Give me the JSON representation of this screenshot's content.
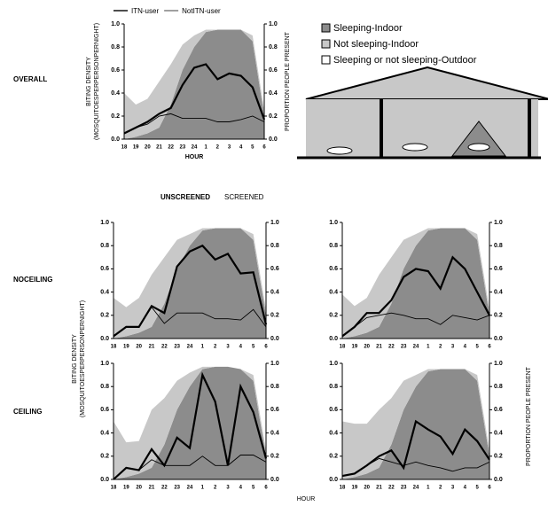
{
  "figure": {
    "row_labels": [
      "OVERALL",
      "NOCEILING",
      "CEILING"
    ],
    "column_labels": [
      "UNSCREENED",
      "SCREENED"
    ],
    "y_label": [
      "BITING DENSITY",
      "(MOSQUITOESPERPERSONPERNIGHT)"
    ],
    "y2_label": "PROPORTION PEOPLE PRESENT",
    "x_label": "HOUR",
    "outdoor_legend": {
      "name": "Sleeping or not sleeping-Outdoor",
      "color": "#ffffff"
    }
  },
  "chart_data": [
    {
      "type": "combo",
      "x_label": "HOUR",
      "y_label": [
        "BITING DENSITY",
        "(MOSQUITOESPERPERSONPERNIGHT)"
      ],
      "y2_label": "PROPORTION PEOPLE PRESENT",
      "categories": [
        "18",
        "19",
        "20",
        "21",
        "22",
        "23",
        "24",
        "1",
        "2",
        "3",
        "4",
        "5",
        "6"
      ],
      "series": [
        {
          "name": "Sleeping-Indoor",
          "kind": "area",
          "axis": "y2",
          "color": "#8c8c8c",
          "values": [
            0,
            0.02,
            0.05,
            0.1,
            0.3,
            0.6,
            0.8,
            0.93,
            0.95,
            0.95,
            0.95,
            0.85,
            0.2
          ]
        },
        {
          "name": "Not sleeping-Indoor",
          "kind": "area",
          "axis": "y2",
          "color": "#c8c8c8",
          "values": [
            0.4,
            0.28,
            0.3,
            0.4,
            0.35,
            0.22,
            0.1,
            0.02,
            0,
            0,
            0,
            0.05,
            0.05
          ]
        },
        {
          "name": "ITN-user",
          "kind": "line",
          "color": "#000000",
          "values": [
            0.05,
            0.1,
            0.15,
            0.22,
            0.27,
            0.47,
            0.62,
            0.65,
            0.52,
            0.57,
            0.55,
            0.45,
            0.17
          ]
        },
        {
          "name": "NotITN-user",
          "kind": "line",
          "color": "#000000",
          "values": [
            0.05,
            0.1,
            0.13,
            0.2,
            0.22,
            0.18,
            0.18,
            0.18,
            0.15,
            0.15,
            0.17,
            0.2,
            0.15
          ]
        }
      ],
      "ylim": [
        0,
        1
      ],
      "yticks": [
        {
          "value": 0,
          "label": "0.0"
        },
        {
          "value": 0.2,
          "label": "0.2"
        },
        {
          "value": 0.4,
          "label": "0.4"
        },
        {
          "value": 0.6,
          "label": "0.6"
        },
        {
          "value": 0.8,
          "label": "0.8"
        },
        {
          "value": 1,
          "label": "1.0"
        }
      ],
      "y2lim": [
        0,
        1
      ],
      "y2ticks": [
        {
          "value": 0,
          "label": "0.0"
        },
        {
          "value": 0.2,
          "label": "0.2"
        },
        {
          "value": 0.4,
          "label": "0.4"
        },
        {
          "value": 0.6,
          "label": "0.6"
        },
        {
          "value": 0.8,
          "label": "0.8"
        },
        {
          "value": 1,
          "label": "1.0"
        }
      ]
    },
    {
      "type": "combo",
      "categories": [
        "18",
        "19",
        "20",
        "21",
        "22",
        "23",
        "24",
        "1",
        "2",
        "3",
        "4",
        "5",
        "6"
      ],
      "series": [
        {
          "name": "Sleeping-Indoor",
          "kind": "area",
          "axis": "y2",
          "color": "#8c8c8c",
          "values": [
            0,
            0.02,
            0.05,
            0.1,
            0.3,
            0.6,
            0.8,
            0.93,
            0.95,
            0.95,
            0.95,
            0.85,
            0.2
          ]
        },
        {
          "name": "Not sleeping-Indoor",
          "kind": "area",
          "axis": "y2",
          "color": "#c8c8c8",
          "values": [
            0.35,
            0.25,
            0.3,
            0.45,
            0.4,
            0.25,
            0.1,
            0.02,
            0,
            0,
            0,
            0.05,
            0.05
          ]
        },
        {
          "name": "ITN-user",
          "kind": "line",
          "color": "#000000",
          "values": [
            0.02,
            0.1,
            0.1,
            0.28,
            0.22,
            0.62,
            0.75,
            0.8,
            0.68,
            0.73,
            0.56,
            0.57,
            0.12
          ]
        },
        {
          "name": "NotITN-user",
          "kind": "line",
          "color": "#000000",
          "values": [
            0.02,
            0.1,
            0.1,
            0.27,
            0.13,
            0.22,
            0.22,
            0.22,
            0.17,
            0.17,
            0.16,
            0.25,
            0.1
          ]
        }
      ],
      "ylim": [
        0,
        1
      ],
      "yticks": [
        {
          "value": 0,
          "label": "0.0"
        },
        {
          "value": 0.2,
          "label": "0.2"
        },
        {
          "value": 0.4,
          "label": "0.4"
        },
        {
          "value": 0.6,
          "label": "0.6"
        },
        {
          "value": 0.8,
          "label": "0.8"
        },
        {
          "value": 1,
          "label": "1.0"
        }
      ],
      "y2lim": [
        0,
        1
      ],
      "y2ticks": [
        {
          "value": 0,
          "label": "0.0"
        },
        {
          "value": 0.2,
          "label": "0.2"
        },
        {
          "value": 0.4,
          "label": "0.4"
        },
        {
          "value": 0.6,
          "label": "0.6"
        },
        {
          "value": 0.8,
          "label": "0.8"
        },
        {
          "value": 1,
          "label": "1.0"
        }
      ]
    },
    {
      "type": "combo",
      "categories": [
        "18",
        "19",
        "20",
        "21",
        "22",
        "23",
        "24",
        "1",
        "2",
        "3",
        "4",
        "5",
        "6"
      ],
      "series": [
        {
          "name": "Sleeping-Indoor",
          "kind": "area",
          "axis": "y2",
          "color": "#8c8c8c",
          "values": [
            0,
            0.02,
            0.05,
            0.1,
            0.3,
            0.6,
            0.8,
            0.93,
            0.95,
            0.95,
            0.95,
            0.85,
            0.2
          ]
        },
        {
          "name": "Not sleeping-Indoor",
          "kind": "area",
          "axis": "y2",
          "color": "#c8c8c8",
          "values": [
            0.38,
            0.26,
            0.3,
            0.45,
            0.4,
            0.25,
            0.1,
            0.02,
            0,
            0,
            0,
            0.05,
            0.05
          ]
        },
        {
          "name": "ITN-user",
          "kind": "line",
          "color": "#000000",
          "values": [
            0.02,
            0.1,
            0.22,
            0.22,
            0.33,
            0.53,
            0.6,
            0.58,
            0.43,
            0.7,
            0.6,
            0.4,
            0.2
          ]
        },
        {
          "name": "NotITN-user",
          "kind": "line",
          "color": "#000000",
          "values": [
            0.02,
            0.1,
            0.18,
            0.2,
            0.22,
            0.2,
            0.17,
            0.17,
            0.12,
            0.2,
            0.18,
            0.16,
            0.2
          ]
        }
      ],
      "ylim": [
        0,
        1
      ],
      "yticks": [
        {
          "value": 0,
          "label": "0.0"
        },
        {
          "value": 0.2,
          "label": "0.2"
        },
        {
          "value": 0.4,
          "label": "0.4"
        },
        {
          "value": 0.6,
          "label": "0.6"
        },
        {
          "value": 0.8,
          "label": "0.8"
        },
        {
          "value": 1,
          "label": "1.0"
        }
      ],
      "y2lim": [
        0,
        1
      ],
      "y2ticks": [
        {
          "value": 0,
          "label": "0.0"
        },
        {
          "value": 0.2,
          "label": "0.2"
        },
        {
          "value": 0.4,
          "label": "0.4"
        },
        {
          "value": 0.6,
          "label": "0.6"
        },
        {
          "value": 0.8,
          "label": "0.8"
        },
        {
          "value": 1,
          "label": "1.0"
        }
      ]
    },
    {
      "type": "combo",
      "categories": [
        "18",
        "19",
        "20",
        "21",
        "22",
        "23",
        "24",
        "1",
        "2",
        "3",
        "4",
        "5",
        "6"
      ],
      "series": [
        {
          "name": "Sleeping-Indoor",
          "kind": "area",
          "axis": "y2",
          "color": "#8c8c8c",
          "values": [
            0,
            0.02,
            0.05,
            0.1,
            0.3,
            0.6,
            0.8,
            0.95,
            0.97,
            0.97,
            0.95,
            0.85,
            0.2
          ]
        },
        {
          "name": "Not sleeping-Indoor",
          "kind": "area",
          "axis": "y2",
          "color": "#c8c8c8",
          "values": [
            0.5,
            0.3,
            0.28,
            0.5,
            0.4,
            0.25,
            0.12,
            0.02,
            0,
            0,
            0,
            0.05,
            0.05
          ]
        },
        {
          "name": "ITN-user",
          "kind": "line",
          "color": "#000000",
          "values": [
            0,
            0.1,
            0.08,
            0.26,
            0.12,
            0.36,
            0.27,
            0.9,
            0.67,
            0.12,
            0.8,
            0.58,
            0.18
          ]
        },
        {
          "name": "NotITN-user",
          "kind": "line",
          "color": "#000000",
          "values": [
            0,
            0.1,
            0.08,
            0.17,
            0.12,
            0.12,
            0.12,
            0.2,
            0.12,
            0.12,
            0.21,
            0.21,
            0.15
          ]
        }
      ],
      "ylim": [
        0,
        1
      ],
      "yticks": [
        {
          "value": 0,
          "label": "0.0"
        },
        {
          "value": 0.2,
          "label": "0.2"
        },
        {
          "value": 0.4,
          "label": "0.4"
        },
        {
          "value": 0.6,
          "label": "0.6"
        },
        {
          "value": 0.8,
          "label": "0.8"
        },
        {
          "value": 1,
          "label": "1.0"
        }
      ],
      "y2lim": [
        0,
        1
      ],
      "y2ticks": [
        {
          "value": 0,
          "label": "0.0"
        },
        {
          "value": 0.2,
          "label": "0.2"
        },
        {
          "value": 0.4,
          "label": "0.4"
        },
        {
          "value": 0.6,
          "label": "0.6"
        },
        {
          "value": 0.8,
          "label": "0.8"
        },
        {
          "value": 1,
          "label": "1.0"
        }
      ]
    },
    {
      "type": "combo",
      "categories": [
        "18",
        "19",
        "20",
        "21",
        "22",
        "23",
        "24",
        "1",
        "2",
        "3",
        "4",
        "5",
        "6"
      ],
      "series": [
        {
          "name": "Sleeping-Indoor",
          "kind": "area",
          "axis": "y2",
          "color": "#8c8c8c",
          "values": [
            0,
            0.02,
            0.05,
            0.1,
            0.3,
            0.6,
            0.8,
            0.93,
            0.95,
            0.95,
            0.95,
            0.85,
            0.2
          ]
        },
        {
          "name": "Not sleeping-Indoor",
          "kind": "area",
          "axis": "y2",
          "color": "#c8c8c8",
          "values": [
            0.5,
            0.46,
            0.43,
            0.5,
            0.4,
            0.25,
            0.1,
            0.02,
            0,
            0,
            0,
            0.05,
            0.05
          ]
        },
        {
          "name": "ITN-user",
          "kind": "line",
          "color": "#000000",
          "values": [
            0.03,
            0.05,
            0.12,
            0.2,
            0.25,
            0.1,
            0.5,
            0.43,
            0.37,
            0.22,
            0.43,
            0.33,
            0.17
          ]
        },
        {
          "name": "NotITN-user",
          "kind": "line",
          "color": "#000000",
          "values": [
            0.03,
            0.05,
            0.12,
            0.18,
            0.15,
            0.12,
            0.15,
            0.12,
            0.1,
            0.07,
            0.1,
            0.1,
            0.15
          ]
        }
      ],
      "ylim": [
        0,
        1
      ],
      "yticks": [
        {
          "value": 0,
          "label": "0.0"
        },
        {
          "value": 0.2,
          "label": "0.2"
        },
        {
          "value": 0.4,
          "label": "0.4"
        },
        {
          "value": 0.6,
          "label": "0.6"
        },
        {
          "value": 0.8,
          "label": "0.8"
        },
        {
          "value": 1,
          "label": "1.0"
        }
      ],
      "y2lim": [
        0,
        1
      ],
      "y2ticks": [
        {
          "value": 0,
          "label": "0.0"
        },
        {
          "value": 0.2,
          "label": "0.2"
        },
        {
          "value": 0.4,
          "label": "0.4"
        },
        {
          "value": 0.6,
          "label": "0.6"
        },
        {
          "value": 0.8,
          "label": "0.8"
        },
        {
          "value": 1,
          "label": "1.0"
        }
      ]
    }
  ]
}
